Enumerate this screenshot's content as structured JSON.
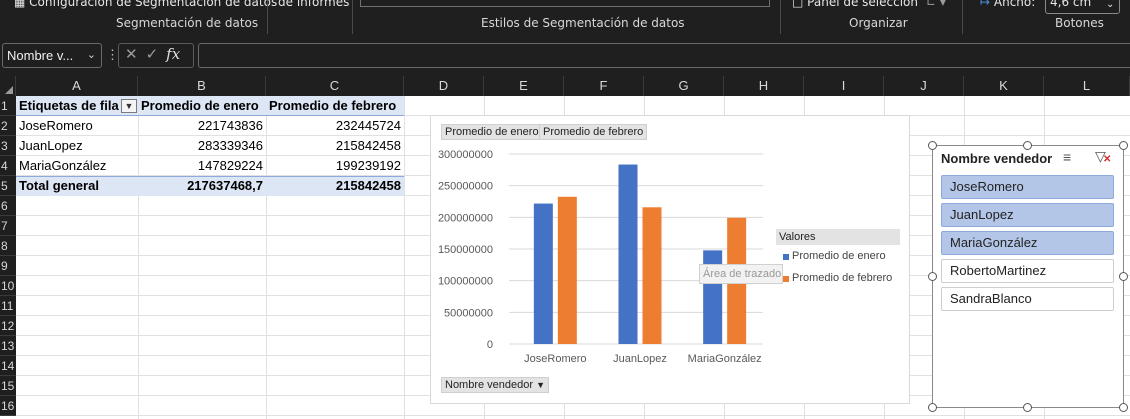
{
  "ribbon": {
    "config_label": "Configuración de Segmentación de datos",
    "informes_label": "de informes",
    "group_segmentacion": "Segmentación de datos",
    "group_estilos": "Estilos de Segmentación de datos",
    "panel_label": "Panel de selección",
    "group_organizar": "Organizar",
    "ancho_label": "Ancho:",
    "ancho_value": "4,6 cm",
    "group_botones": "Botones"
  },
  "formula_bar": {
    "name_box": "Nombre v...",
    "formula": ""
  },
  "columns": [
    "A",
    "B",
    "C",
    "D",
    "E",
    "F",
    "G",
    "H",
    "I",
    "J",
    "K",
    "L"
  ],
  "rows": [
    "1",
    "2",
    "3",
    "4",
    "5",
    "6",
    "7",
    "8",
    "9",
    "10",
    "11",
    "12",
    "13",
    "14",
    "15",
    "16"
  ],
  "pivot": {
    "headers": [
      "Etiquetas de fila",
      "Promedio de enero",
      "Promedio de febrero"
    ],
    "rows": [
      {
        "label": "JoseRomero",
        "enero": "221743836",
        "febrero": "232445724"
      },
      {
        "label": "JuanLopez",
        "enero": "283339346",
        "febrero": "215842458"
      },
      {
        "label": "MariaGonzález",
        "enero": "147829224",
        "febrero": "199239192"
      }
    ],
    "total": {
      "label": "Total general",
      "enero": "217637468,7",
      "febrero": "215842458"
    }
  },
  "chart": {
    "field_buttons": [
      "Promedio de enero",
      "Promedio de febrero"
    ],
    "legend_title": "Valores",
    "tooltip": "Área de trazado",
    "filter_field": "Nombre vendedor",
    "colors": {
      "enero": "#4472c4",
      "febrero": "#ed7d31"
    }
  },
  "chart_data": {
    "type": "bar",
    "categories": [
      "JoseRomero",
      "JuanLopez",
      "MariaGonzález"
    ],
    "series": [
      {
        "name": "Promedio de enero",
        "values": [
          221743836,
          283339346,
          147829224
        ]
      },
      {
        "name": "Promedio de febrero",
        "values": [
          232445724,
          215842458,
          199239192
        ]
      }
    ],
    "ylim": [
      0,
      300000000
    ],
    "yticks": [
      "300000000",
      "250000000",
      "200000000",
      "150000000",
      "100000000",
      "50000000",
      "0"
    ],
    "grid": true,
    "legend": "right"
  },
  "slicer": {
    "title": "Nombre vendedor",
    "items": [
      {
        "label": "JoseRomero",
        "selected": true
      },
      {
        "label": "JuanLopez",
        "selected": true
      },
      {
        "label": "MariaGonzález",
        "selected": true
      },
      {
        "label": "RobertoMartinez",
        "selected": false
      },
      {
        "label": "SandraBlanco",
        "selected": false
      }
    ]
  }
}
